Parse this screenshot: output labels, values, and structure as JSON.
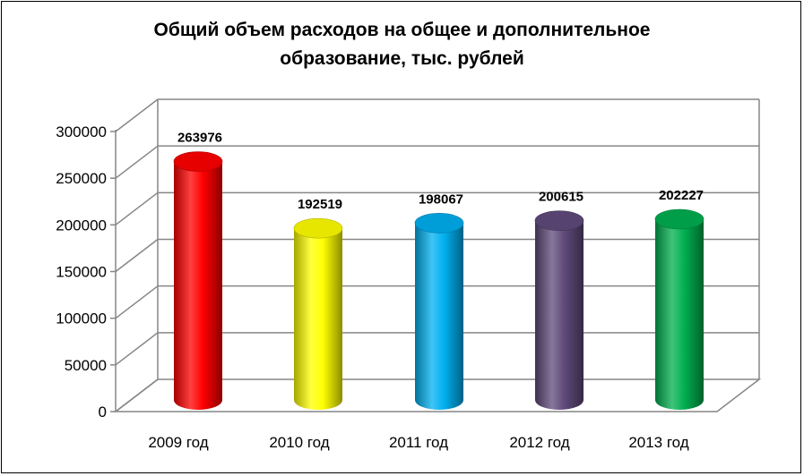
{
  "chart_data": {
    "type": "bar",
    "title_lines": [
      "Общий объем расходов на общее и дополнительное",
      "образование, тыс. рублей"
    ],
    "categories": [
      "2009 год",
      "2010 год",
      "2011 год",
      "2012 год",
      "2013 год"
    ],
    "values": [
      263976,
      192519,
      198067,
      200615,
      202227
    ],
    "data_labels": [
      "263976",
      "192519",
      "198067",
      "200615",
      "202227"
    ],
    "y_ticks": [
      "0",
      "50000",
      "100000",
      "150000",
      "200000",
      "250000",
      "300000"
    ],
    "ylim": [
      0,
      300000
    ],
    "grid": true,
    "colors": [
      "#ff0000",
      "#ffff00",
      "#00b0f0",
      "#604a7b",
      "#00b050"
    ]
  }
}
